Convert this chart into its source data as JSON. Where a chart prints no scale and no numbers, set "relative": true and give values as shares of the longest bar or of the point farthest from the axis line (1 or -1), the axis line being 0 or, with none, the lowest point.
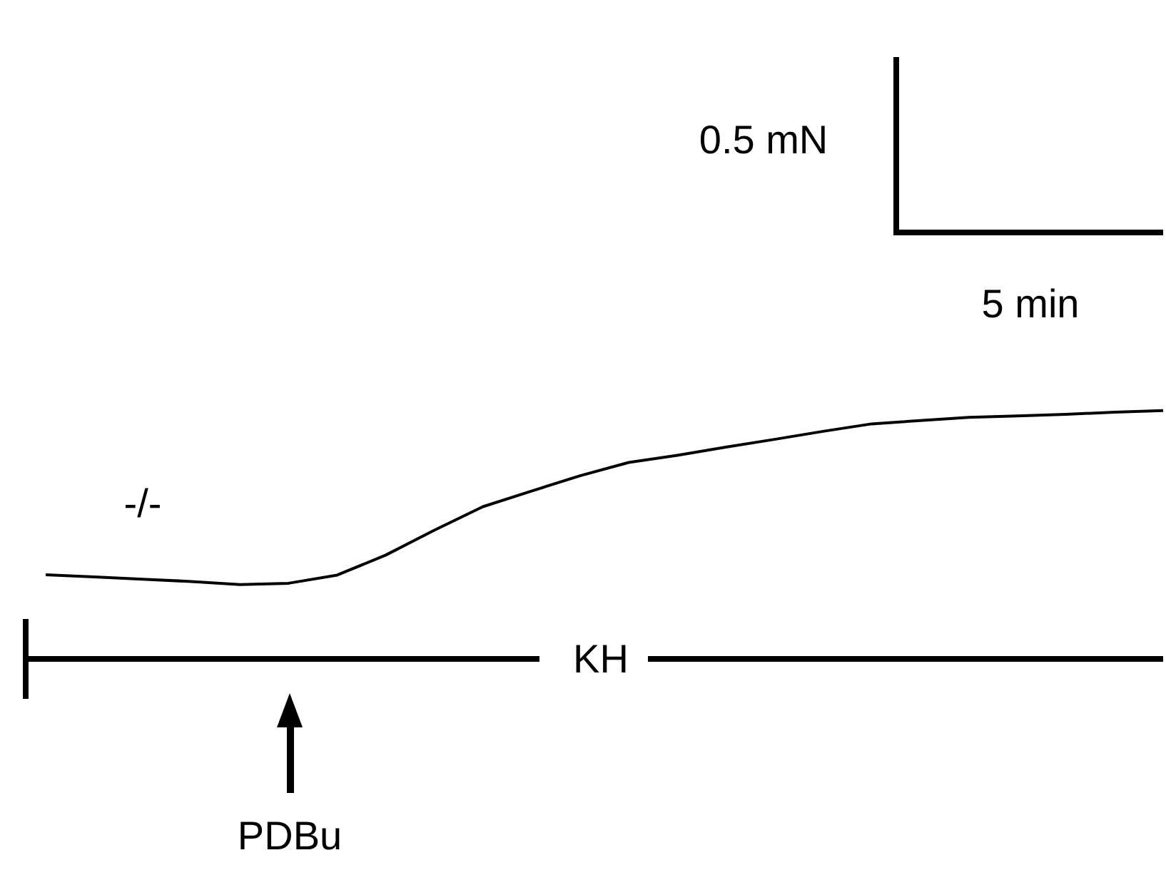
{
  "chart_data": {
    "type": "line",
    "relative": true,
    "categories": [
      null,
      null,
      null,
      null,
      null,
      null,
      null,
      null,
      null,
      null,
      null,
      null,
      null,
      null,
      null,
      null,
      null,
      null,
      null,
      null,
      null,
      null,
      null,
      null
    ],
    "series": [
      {
        "color": "#000000",
        "values": [
          0.057,
          0.044,
          0.031,
          0.018,
          0,
          0.008,
          0.055,
          0.17,
          0.313,
          0.448,
          0.538,
          0.626,
          0.702,
          0.743,
          0.79,
          0.835,
          0.881,
          0.924,
          0.943,
          0.961,
          0.97,
          0.979,
          0.991,
          1
        ]
      }
    ],
    "marker": "none",
    "line_style": "solid",
    "annotations": [
      "-/-",
      "0.5 mN",
      "5 min",
      "KH",
      "PDBu"
    ]
  }
}
